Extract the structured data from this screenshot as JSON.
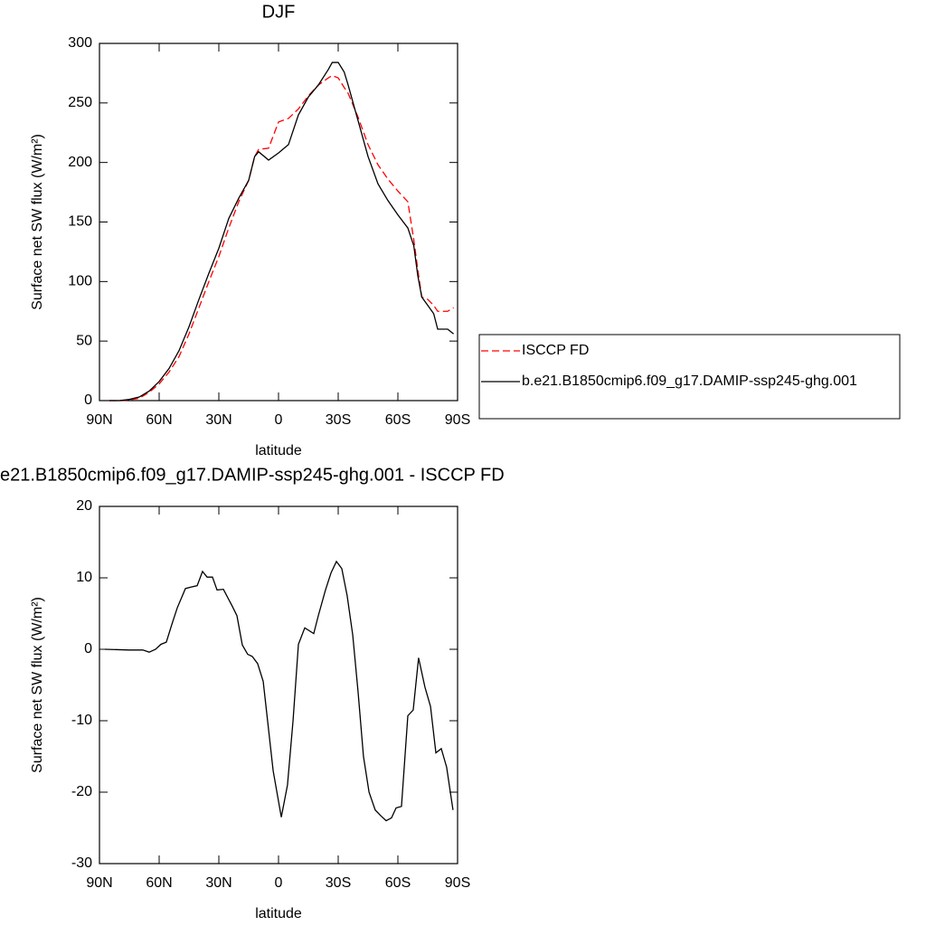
{
  "chart_data": [
    {
      "type": "line",
      "title": "DJF",
      "xlabel": "latitude",
      "ylabel": "Surface net SW flux (W/m²)",
      "x": [
        85,
        80,
        75,
        70,
        65,
        60,
        55,
        50,
        45,
        40,
        35,
        30,
        25,
        20,
        15,
        12,
        10,
        5,
        0,
        -5,
        -10,
        -15,
        -20,
        -25,
        -27,
        -30,
        -33,
        -35,
        -40,
        -45,
        -50,
        -55,
        -60,
        -65,
        -68,
        -70,
        -72,
        -75,
        -78,
        -80,
        -85,
        -88
      ],
      "series": [
        {
          "name": "ISCCP FD",
          "color": "#ff0000",
          "dash": true,
          "values": [
            0,
            0,
            0.5,
            2,
            7,
            14,
            24,
            37,
            56,
            78,
            100,
            121,
            145,
            167,
            185,
            205,
            211,
            212,
            234,
            237,
            245,
            256,
            265,
            271,
            273,
            271,
            263,
            258,
            238,
            215,
            198,
            186,
            176,
            167,
            135,
            110,
            87,
            85,
            80,
            75,
            75,
            78
          ]
        },
        {
          "name": "b.e21.B1850cmip6.f09_g17.DAMIP-ssp245-ghg.001",
          "color": "#000000",
          "dash": false,
          "values": [
            0,
            0,
            1,
            3,
            8,
            16,
            27,
            42,
            62,
            85,
            107,
            128,
            153,
            170,
            185,
            205,
            209,
            202,
            208,
            215,
            240,
            255,
            265,
            278,
            284,
            284,
            276,
            265,
            235,
            205,
            182,
            168,
            156,
            145,
            130,
            105,
            87,
            80,
            73,
            60,
            60,
            56
          ]
        }
      ],
      "xlim": [
        90,
        -90
      ],
      "xticks": [
        {
          "value": 90,
          "label": "90N"
        },
        {
          "value": 60,
          "label": "60N"
        },
        {
          "value": 30,
          "label": "30N"
        },
        0,
        {
          "value": -30,
          "label": "30S"
        },
        {
          "value": -60,
          "label": "60S"
        },
        {
          "value": -90,
          "label": "90S"
        }
      ],
      "ylim": [
        0,
        300
      ],
      "yticks": [
        0,
        50,
        100,
        150,
        200,
        250,
        300
      ],
      "legend": "right"
    },
    {
      "type": "line",
      "title": "e21.B1850cmip6.f09_g17.DAMIP-ssp245-ghg.001 - ISCCP FD",
      "xlabel": "latitude",
      "ylabel": "Surface net SW flux (W/m²)",
      "x": [
        87.3,
        75,
        68.2,
        65,
        61.8,
        59.1,
        56.4,
        53.6,
        50.9,
        46.8,
        44.1,
        40.9,
        38.2,
        35.9,
        33.2,
        30.9,
        27.7,
        23.2,
        20.9,
        18.2,
        15.5,
        13.2,
        10.5,
        7.7,
        5.5,
        2.7,
        -1.4,
        -4.5,
        -7.3,
        -10,
        -13.2,
        -17.7,
        -20,
        -23.6,
        -26.4,
        -29.1,
        -31.8,
        -34.5,
        -37.3,
        -40,
        -42.7,
        -45.5,
        -48.6,
        -51.4,
        -54.1,
        -56.8,
        -59.1,
        -61.8,
        -65,
        -67.7,
        -70.4,
        -73.6,
        -76.4,
        -79.1,
        -81.8,
        -84.5,
        -87.7
      ],
      "values": [
        0,
        -0.1,
        -0.1,
        -0.4,
        0,
        0.7,
        1,
        3.5,
        5.8,
        8.5,
        8.7,
        8.9,
        10.9,
        10.1,
        10.1,
        8.3,
        8.4,
        6,
        4.7,
        0.6,
        -0.7,
        -1,
        -2,
        -4.5,
        -10,
        -17,
        -23.5,
        -19,
        -10,
        0.7,
        3,
        2.2,
        4.7,
        8.3,
        10.7,
        12.3,
        11.3,
        7.5,
        2,
        -6,
        -15,
        -20,
        -22.5,
        -23.3,
        -24,
        -23.6,
        -22.2,
        -22,
        -9.3,
        -8.5,
        -1.2,
        -5.3,
        -8,
        -14.5,
        -13.9,
        -16.5,
        -22.5
      ],
      "color": "#000000",
      "xlim": [
        90,
        -90
      ],
      "xticks": [
        {
          "value": 90,
          "label": "90N"
        },
        {
          "value": 60,
          "label": "60N"
        },
        {
          "value": 30,
          "label": "30N"
        },
        0,
        {
          "value": -30,
          "label": "30S"
        },
        {
          "value": -60,
          "label": "60S"
        },
        {
          "value": -90,
          "label": "90S"
        }
      ],
      "ylim": [
        -30,
        20
      ],
      "yticks": [
        -30,
        -20,
        -10,
        0,
        10,
        20
      ]
    }
  ]
}
